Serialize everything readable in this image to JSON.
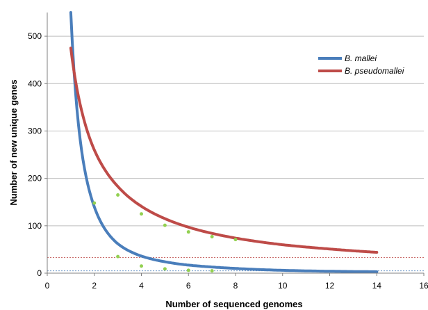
{
  "chart_data": {
    "type": "line",
    "title": "",
    "xlabel": "Number of sequenced genomes",
    "ylabel": "Number of new unique genes",
    "xlim": [
      0,
      16
    ],
    "ylim": [
      0,
      550
    ],
    "x_ticks": [
      "0",
      "2",
      "4",
      "6",
      "8",
      "10",
      "12",
      "14",
      "16"
    ],
    "y_ticks": [
      "0",
      "100",
      "200",
      "300",
      "400",
      "500"
    ],
    "grid": "horizontal",
    "legend_position": "top-right",
    "series": [
      {
        "name": "B. mallei",
        "color": "#4a7ebb",
        "fit": "power",
        "x_range": [
          1.0,
          14.0
        ],
        "curve_points": [
          [
            1.0,
            550
          ],
          [
            1.5,
            245
          ],
          [
            2,
            140
          ],
          [
            3,
            62
          ],
          [
            4,
            36
          ],
          [
            5,
            24
          ],
          [
            6,
            17
          ],
          [
            7,
            13
          ],
          [
            8,
            10
          ],
          [
            10,
            6
          ],
          [
            12,
            4
          ],
          [
            14,
            3
          ]
        ],
        "observed_points": [
          [
            3,
            35
          ],
          [
            4,
            15
          ],
          [
            5,
            9
          ],
          [
            6,
            6
          ],
          [
            7,
            5
          ]
        ],
        "asymptote": 5
      },
      {
        "name": "B. pseudomallei",
        "color": "#be4b48",
        "fit": "power",
        "x_range": [
          1.0,
          14.0
        ],
        "curve_points": [
          [
            1.0,
            475
          ],
          [
            1.5,
            335
          ],
          [
            2,
            260
          ],
          [
            3,
            183
          ],
          [
            4,
            141
          ],
          [
            5,
            115
          ],
          [
            6,
            97
          ],
          [
            7,
            84
          ],
          [
            8,
            74
          ],
          [
            10,
            60
          ],
          [
            12,
            51
          ],
          [
            14,
            44
          ]
        ],
        "observed_points": [
          [
            2,
            148
          ],
          [
            3,
            165
          ],
          [
            4,
            125
          ],
          [
            5,
            101
          ],
          [
            6,
            87
          ],
          [
            7,
            77
          ],
          [
            8,
            71
          ]
        ],
        "asymptote": 33
      }
    ],
    "observed_point_color": "#92d050"
  }
}
